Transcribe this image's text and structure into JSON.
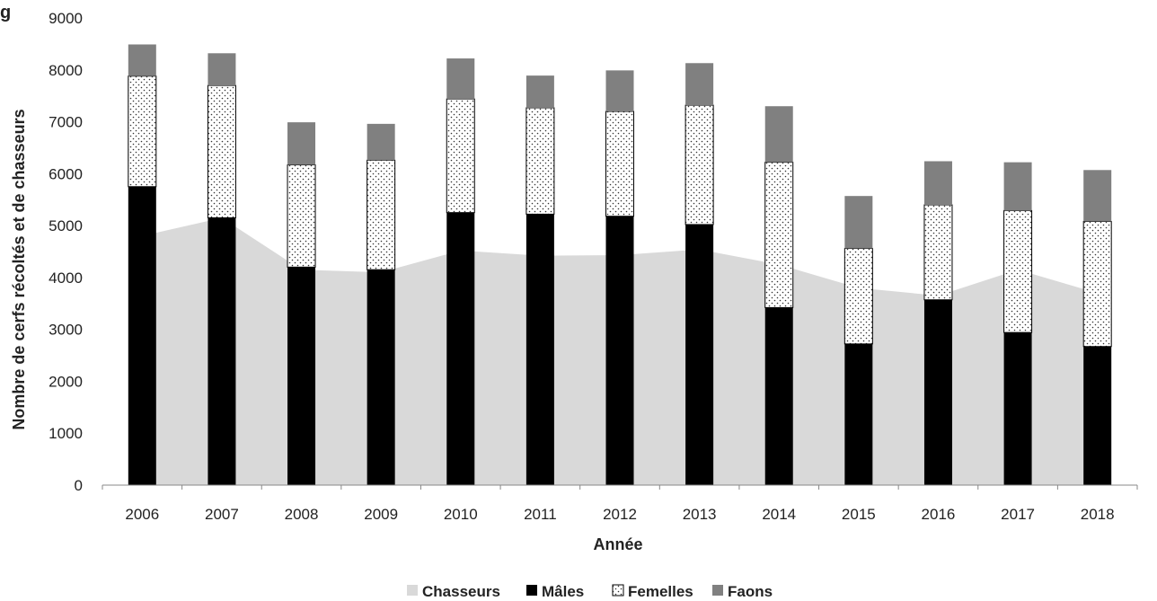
{
  "title_fragment": "g",
  "chart_data": {
    "type": "bar",
    "stacked": true,
    "categories": [
      "2006",
      "2007",
      "2008",
      "2009",
      "2010",
      "2011",
      "2012",
      "2013",
      "2014",
      "2015",
      "2016",
      "2017",
      "2018"
    ],
    "xlabel": "Année",
    "ylabel": "Nombre de cerfs récoltés et de chasseurs",
    "ylim": [
      0,
      9000
    ],
    "yticks": [
      "0",
      "1000",
      "2000",
      "3000",
      "4000",
      "5000",
      "6000",
      "7000",
      "8000",
      "9000"
    ],
    "grid": false,
    "legend_position": "bottom",
    "area_series": {
      "name": "Chasseurs",
      "color": "#d9d9d9",
      "values": [
        4800,
        5150,
        4150,
        4100,
        4520,
        4420,
        4430,
        4540,
        4250,
        3800,
        3650,
        4150,
        3700
      ]
    },
    "series": [
      {
        "name": "Mâles",
        "color": "#000000",
        "pattern": "solid",
        "values": [
          5750,
          5150,
          4200,
          4150,
          5250,
          5220,
          5180,
          5020,
          3420,
          2720,
          3570,
          2940,
          2670
        ]
      },
      {
        "name": "Femelles",
        "color": "#ffffff",
        "pattern": "dotted",
        "values": [
          2130,
          2550,
          1970,
          2110,
          2190,
          2050,
          2020,
          2300,
          2800,
          1840,
          1830,
          2350,
          2410
        ]
      },
      {
        "name": "Faons",
        "color": "#808080",
        "pattern": "solid",
        "values": [
          610,
          620,
          820,
          700,
          780,
          620,
          790,
          810,
          1080,
          1010,
          840,
          930,
          990
        ]
      }
    ]
  }
}
